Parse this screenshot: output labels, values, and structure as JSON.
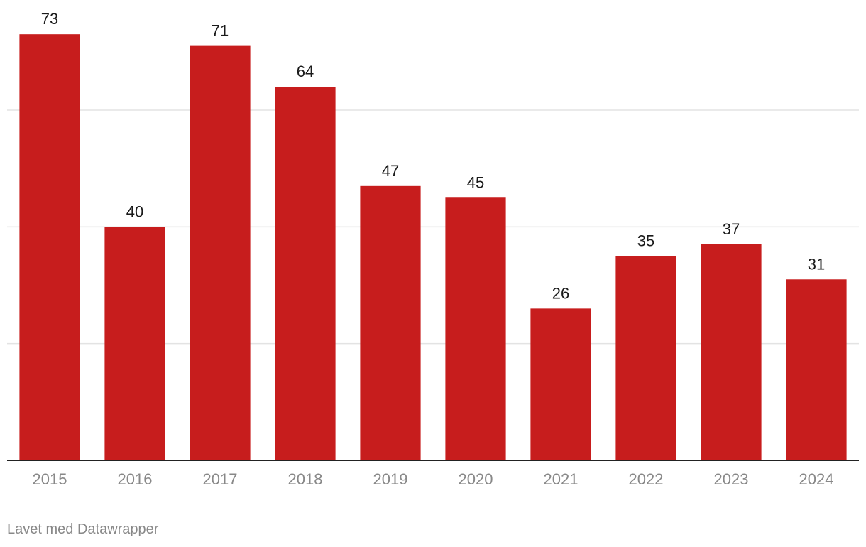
{
  "chart_data": {
    "type": "bar",
    "categories": [
      "2015",
      "2016",
      "2017",
      "2018",
      "2019",
      "2020",
      "2021",
      "2022",
      "2023",
      "2024"
    ],
    "values": [
      73,
      40,
      71,
      64,
      47,
      45,
      26,
      35,
      37,
      31
    ],
    "title": "",
    "xlabel": "",
    "ylabel": "",
    "ylim": [
      0,
      80
    ],
    "gridlines": [
      20,
      40,
      60
    ],
    "grid": true,
    "legend": "none",
    "colors": {
      "bar": "#c71d1d",
      "grid": "#e3e3e3",
      "axis": "#222222"
    }
  },
  "footer": {
    "credit": "Lavet med Datawrapper"
  }
}
